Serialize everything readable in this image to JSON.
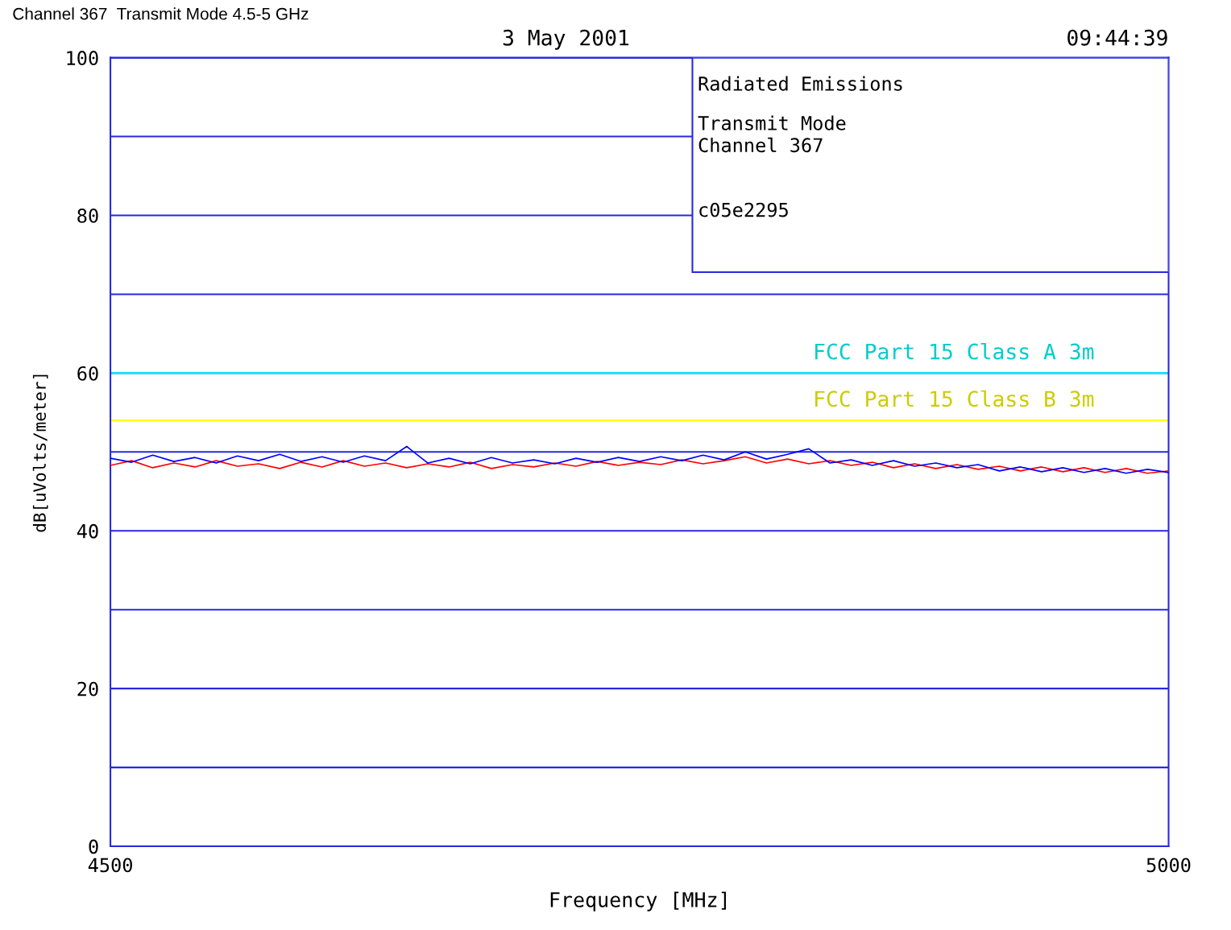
{
  "chart_data": {
    "type": "line",
    "title": "Channel 367  Transmit Mode 4.5-5 GHz",
    "xlabel": "Frequency [MHz]",
    "ylabel": "dB[uVolts/meter]",
    "annotations": [
      "3 May 2001",
      "09:44:39",
      "Radiated Emissions",
      "Transmit Mode",
      "Channel 367",
      "c05e2295"
    ],
    "x": [
      4500,
      4510,
      4520,
      4530,
      4540,
      4550,
      4560,
      4570,
      4580,
      4590,
      4600,
      4610,
      4620,
      4630,
      4640,
      4650,
      4660,
      4670,
      4680,
      4690,
      4700,
      4710,
      4720,
      4730,
      4740,
      4750,
      4760,
      4770,
      4780,
      4790,
      4800,
      4810,
      4820,
      4830,
      4840,
      4850,
      4860,
      4870,
      4880,
      4890,
      4900,
      4910,
      4920,
      4930,
      4940,
      4950,
      4960,
      4970,
      4980,
      4990,
      5000
    ],
    "series": [
      {
        "color": "#ff0000",
        "values": [
          48.3,
          48.9,
          48.0,
          48.6,
          48.1,
          48.9,
          48.2,
          48.5,
          47.9,
          48.7,
          48.1,
          48.9,
          48.2,
          48.6,
          48.0,
          48.5,
          48.1,
          48.7,
          47.9,
          48.4,
          48.1,
          48.6,
          48.2,
          48.8,
          48.3,
          48.7,
          48.4,
          49.0,
          48.5,
          48.9,
          49.4,
          48.6,
          49.1,
          48.5,
          48.9,
          48.3,
          48.7,
          48.0,
          48.5,
          47.9,
          48.4,
          47.8,
          48.2,
          47.6,
          48.1,
          47.5,
          48.0,
          47.4,
          47.9,
          47.3,
          47.6
        ]
      },
      {
        "color": "#0000ff",
        "values": [
          49.2,
          48.7,
          49.6,
          48.8,
          49.3,
          48.6,
          49.5,
          48.9,
          49.7,
          48.8,
          49.4,
          48.7,
          49.5,
          48.9,
          50.7,
          48.6,
          49.2,
          48.5,
          49.3,
          48.6,
          49.0,
          48.5,
          49.2,
          48.7,
          49.3,
          48.8,
          49.4,
          48.9,
          49.6,
          49.0,
          50.0,
          49.1,
          49.7,
          50.4,
          48.6,
          49.0,
          48.3,
          48.9,
          48.2,
          48.6,
          48.0,
          48.4,
          47.6,
          48.1,
          47.5,
          48.0,
          47.4,
          47.9,
          47.3,
          47.8,
          47.4
        ]
      }
    ],
    "xlim": [
      4500,
      5000
    ],
    "xticks": [
      4500,
      5000
    ],
    "ylim": [
      0,
      100
    ],
    "yticks": [
      0,
      {
        "value": 10,
        "label": null
      },
      20,
      {
        "value": 30,
        "label": null
      },
      40,
      {
        "value": 50,
        "label": null
      },
      60,
      {
        "value": 70,
        "label": null
      },
      80,
      {
        "value": 90,
        "label": null
      },
      100
    ],
    "ref_lines": [
      {
        "axis": "y",
        "value": 60,
        "label": "FCC Part 15 Class A 3m",
        "color": "#00ffff"
      },
      {
        "axis": "y",
        "value": 54,
        "label": "FCC Part 15 Class B 3m",
        "color": "#ffff00"
      }
    ],
    "grid": "y",
    "legend": false,
    "marker": "none",
    "line_style": "solid"
  }
}
